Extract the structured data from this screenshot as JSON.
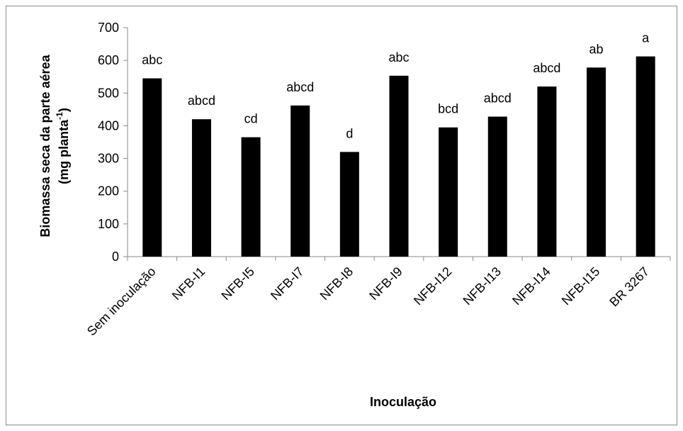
{
  "chart_data": {
    "type": "bar",
    "categories": [
      "Sem inoculação",
      "NFB-I1",
      "NFB-I5",
      "NFB-I7",
      "NFB-I8",
      "NFB-I9",
      "NFB-I12",
      "NFB-I13",
      "NFB-I14",
      "NFB-I15",
      "BR 3267"
    ],
    "values": [
      545,
      420,
      365,
      462,
      320,
      553,
      395,
      428,
      520,
      578,
      612
    ],
    "data_labels": [
      "abc",
      "abcd",
      "cd",
      "abcd",
      "d",
      "abc",
      "bcd",
      "abcd",
      "abcd",
      "ab",
      "a"
    ],
    "title": "",
    "xlabel": "Inoculação",
    "ylabel_line1": "Biomassa seca da parte aérea",
    "ylabel_line2_prefix": "(mg planta",
    "ylabel_line2_sup": "-1",
    "ylabel_line2_suffix": ")",
    "ylim": [
      0,
      700
    ],
    "yticks": [
      0,
      100,
      200,
      300,
      400,
      500,
      600,
      700
    ],
    "grid": false,
    "legend": "none",
    "bar_color": "#000000"
  }
}
